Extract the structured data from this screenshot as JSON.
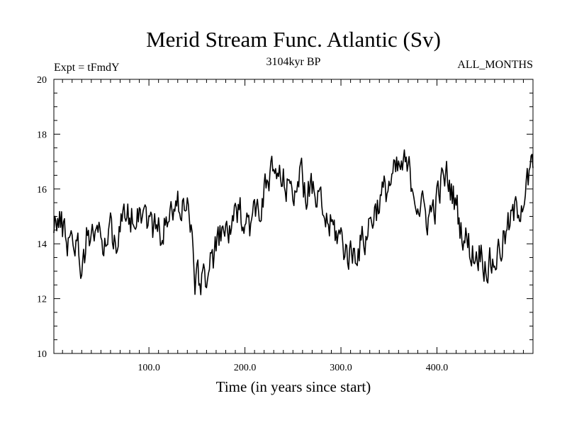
{
  "chart_data": {
    "type": "line",
    "title": "Merid Stream Func. Atlantic (Sv)",
    "subtitle_left": "Expt = tFmdY",
    "subtitle_center": "3104kyr BP",
    "subtitle_right": "ALL_MONTHS",
    "xlabel": "Time (in years since start)",
    "ylabel": "",
    "xlim": [
      1,
      500
    ],
    "ylim": [
      10,
      20
    ],
    "x_ticks": [
      100,
      200,
      300,
      400
    ],
    "x_tick_labels": [
      "100.0",
      "200.0",
      "300.0",
      "400.0"
    ],
    "y_ticks": [
      10,
      12,
      14,
      16,
      18,
      20
    ],
    "y_tick_labels": [
      "10",
      "12",
      "14",
      "16",
      "18",
      "20"
    ],
    "series": [
      {
        "name": "Merid Stream Func. Atlantic",
        "anchors_x": [
          1,
          5,
          10,
          15,
          20,
          25,
          30,
          35,
          40,
          45,
          50,
          55,
          60,
          65,
          70,
          75,
          80,
          85,
          90,
          95,
          100,
          105,
          110,
          115,
          120,
          125,
          130,
          135,
          140,
          145,
          148,
          150,
          152,
          155,
          160,
          165,
          170,
          175,
          180,
          185,
          190,
          195,
          200,
          205,
          210,
          215,
          220,
          225,
          230,
          235,
          240,
          245,
          250,
          255,
          260,
          265,
          270,
          275,
          280,
          285,
          290,
          295,
          300,
          305,
          310,
          315,
          320,
          325,
          330,
          335,
          340,
          345,
          350,
          355,
          360,
          365,
          370,
          375,
          380,
          385,
          390,
          395,
          400,
          405,
          410,
          415,
          420,
          425,
          430,
          435,
          440,
          445,
          450,
          455,
          460,
          465,
          470,
          475,
          480,
          485,
          490,
          495,
          500
        ],
        "anchors_y": [
          15.0,
          14.8,
          14.6,
          14.2,
          14.4,
          14.0,
          13.2,
          14.2,
          14.6,
          14.4,
          14.0,
          14.2,
          14.6,
          14.2,
          14.6,
          14.8,
          15.0,
          15.2,
          15.4,
          15.2,
          14.8,
          14.6,
          14.4,
          14.6,
          14.8,
          15.2,
          15.4,
          15.6,
          15.4,
          14.0,
          12.8,
          12.6,
          12.6,
          12.8,
          13.0,
          13.2,
          13.8,
          14.2,
          14.4,
          14.6,
          14.8,
          15.0,
          15.2,
          14.8,
          15.0,
          15.4,
          15.8,
          16.2,
          16.6,
          16.4,
          16.2,
          16.0,
          16.2,
          16.4,
          16.2,
          16.0,
          15.8,
          15.6,
          15.2,
          14.8,
          14.6,
          14.4,
          14.2,
          13.8,
          13.6,
          13.8,
          14.0,
          14.2,
          14.8,
          15.2,
          15.6,
          15.8,
          16.2,
          16.4,
          16.6,
          16.8,
          16.6,
          16.2,
          15.6,
          15.2,
          15.0,
          15.2,
          15.6,
          16.2,
          16.4,
          16.0,
          15.4,
          14.6,
          14.2,
          13.8,
          13.6,
          13.8,
          13.4,
          13.2,
          13.4,
          13.8,
          14.2,
          14.6,
          15.0,
          15.4,
          15.8,
          16.2,
          16.8
        ]
      }
    ]
  }
}
